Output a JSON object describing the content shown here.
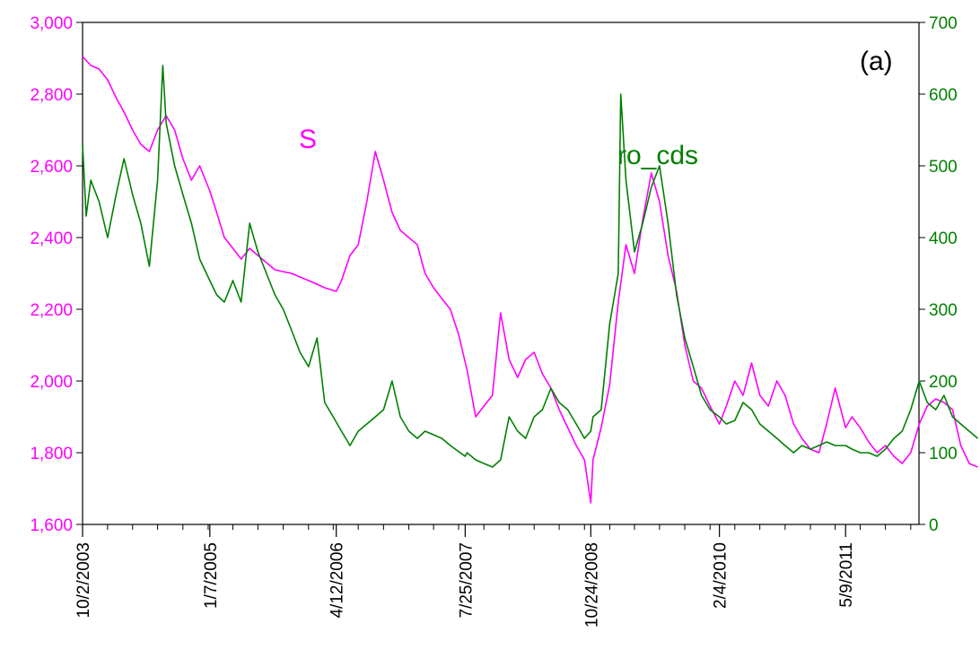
{
  "chart_data": {
    "type": "line",
    "panel_label": "(a)",
    "colors": {
      "S": "#ff00ff",
      "ro_cds": "#008000",
      "axis": "#000000"
    },
    "x": {
      "start": "10/2/2003",
      "end": "1/31/2012",
      "tick_labels": [
        "10/2/2003",
        "1/7/2005",
        "4/12/2006",
        "7/25/2007",
        "10/24/2008",
        "2/4/2010",
        "5/9/2011"
      ]
    },
    "y_left": {
      "ylim": [
        1600,
        3000
      ],
      "tick_labels": [
        "1,600",
        "1,800",
        "2,000",
        "2,200",
        "2,400",
        "2,600",
        "2,800",
        "3,000"
      ],
      "ticks": [
        1600,
        1800,
        2000,
        2200,
        2400,
        2600,
        2800,
        3000
      ]
    },
    "y_right": {
      "ylim": [
        0,
        700
      ],
      "tick_labels": [
        "0",
        "100",
        "200",
        "300",
        "400",
        "500",
        "600",
        "700"
      ],
      "ticks": [
        0,
        100,
        200,
        300,
        400,
        500,
        600,
        700
      ]
    },
    "grid": false,
    "series": [
      {
        "name": "S",
        "axis": "left",
        "points": [
          [
            "10/2/2003",
            2905
          ],
          [
            "11/1/2003",
            2880
          ],
          [
            "12/1/2003",
            2870
          ],
          [
            "1/1/2004",
            2840
          ],
          [
            "2/1/2004",
            2790
          ],
          [
            "3/1/2004",
            2750
          ],
          [
            "4/1/2004",
            2700
          ],
          [
            "5/1/2004",
            2660
          ],
          [
            "6/1/2004",
            2640
          ],
          [
            "7/1/2004",
            2700
          ],
          [
            "8/1/2004",
            2740
          ],
          [
            "9/1/2004",
            2700
          ],
          [
            "10/1/2004",
            2620
          ],
          [
            "11/1/2004",
            2560
          ],
          [
            "12/1/2004",
            2600
          ],
          [
            "1/7/2005",
            2530
          ],
          [
            "2/1/2005",
            2470
          ],
          [
            "3/1/2005",
            2400
          ],
          [
            "4/1/2005",
            2370
          ],
          [
            "5/1/2005",
            2340
          ],
          [
            "6/1/2005",
            2370
          ],
          [
            "7/1/2005",
            2350
          ],
          [
            "8/1/2005",
            2330
          ],
          [
            "9/1/2005",
            2310
          ],
          [
            "10/1/2005",
            2305
          ],
          [
            "11/1/2005",
            2300
          ],
          [
            "12/1/2005",
            2290
          ],
          [
            "1/1/2006",
            2280
          ],
          [
            "2/1/2006",
            2270
          ],
          [
            "3/1/2006",
            2260
          ],
          [
            "4/12/2006",
            2250
          ],
          [
            "5/1/2006",
            2280
          ],
          [
            "6/1/2006",
            2350
          ],
          [
            "7/1/2006",
            2380
          ],
          [
            "8/1/2006",
            2500
          ],
          [
            "9/1/2006",
            2640
          ],
          [
            "10/1/2006",
            2560
          ],
          [
            "11/1/2006",
            2470
          ],
          [
            "12/1/2006",
            2420
          ],
          [
            "1/1/2007",
            2400
          ],
          [
            "2/1/2007",
            2380
          ],
          [
            "3/1/2007",
            2300
          ],
          [
            "4/1/2007",
            2260
          ],
          [
            "5/1/2007",
            2230
          ],
          [
            "6/1/2007",
            2200
          ],
          [
            "7/1/2007",
            2130
          ],
          [
            "8/1/2007",
            2030
          ],
          [
            "9/1/2007",
            1900
          ],
          [
            "10/1/2007",
            1930
          ],
          [
            "11/1/2007",
            1960
          ],
          [
            "12/1/2007",
            2190
          ],
          [
            "1/1/2008",
            2060
          ],
          [
            "2/1/2008",
            2010
          ],
          [
            "3/1/2008",
            2060
          ],
          [
            "4/1/2008",
            2080
          ],
          [
            "5/1/2008",
            2020
          ],
          [
            "6/1/2008",
            1980
          ],
          [
            "7/1/2008",
            1920
          ],
          [
            "8/1/2008",
            1870
          ],
          [
            "9/1/2008",
            1820
          ],
          [
            "10/1/2008",
            1780
          ],
          [
            "10/24/2008",
            1660
          ],
          [
            "11/1/2008",
            1780
          ],
          [
            "12/1/2008",
            1870
          ],
          [
            "1/1/2009",
            1990
          ],
          [
            "2/1/2009",
            2220
          ],
          [
            "3/1/2009",
            2380
          ],
          [
            "4/1/2009",
            2300
          ],
          [
            "5/1/2009",
            2450
          ],
          [
            "6/1/2009",
            2580
          ],
          [
            "7/1/2009",
            2500
          ],
          [
            "8/1/2009",
            2350
          ],
          [
            "9/1/2009",
            2250
          ],
          [
            "10/1/2009",
            2100
          ],
          [
            "11/1/2009",
            2000
          ],
          [
            "12/1/2009",
            1980
          ],
          [
            "1/1/2010",
            1930
          ],
          [
            "2/4/2010",
            1880
          ],
          [
            "3/1/2010",
            1930
          ],
          [
            "4/1/2010",
            2000
          ],
          [
            "5/1/2010",
            1960
          ],
          [
            "6/1/2010",
            2050
          ],
          [
            "7/1/2010",
            1960
          ],
          [
            "8/1/2010",
            1930
          ],
          [
            "9/1/2010",
            2000
          ],
          [
            "10/1/2010",
            1960
          ],
          [
            "11/1/2010",
            1880
          ],
          [
            "12/1/2010",
            1840
          ],
          [
            "1/1/2011",
            1810
          ],
          [
            "2/1/2011",
            1800
          ],
          [
            "3/1/2011",
            1880
          ],
          [
            "4/1/2011",
            1980
          ],
          [
            "5/9/2011",
            1870
          ],
          [
            "6/1/2011",
            1900
          ],
          [
            "7/1/2011",
            1870
          ],
          [
            "8/1/2011",
            1830
          ],
          [
            "9/1/2011",
            1800
          ],
          [
            "10/1/2011",
            1820
          ],
          [
            "11/1/2011",
            1790
          ],
          [
            "12/1/2011",
            1770
          ],
          [
            "1/1/2012",
            1800
          ],
          [
            "2/1/2012",
            1880
          ],
          [
            "3/1/2012",
            1930
          ],
          [
            "4/1/2012",
            1950
          ],
          [
            "5/1/2012",
            1940
          ],
          [
            "6/1/2012",
            1920
          ],
          [
            "7/1/2012",
            1820
          ],
          [
            "8/1/2012",
            1770
          ],
          [
            "9/1/2012",
            1760
          ]
        ]
      },
      {
        "name": "ro_cds",
        "axis": "right",
        "points": [
          [
            "10/2/2003",
            530
          ],
          [
            "10/15/2003",
            430
          ],
          [
            "11/1/2003",
            480
          ],
          [
            "12/1/2003",
            450
          ],
          [
            "1/1/2004",
            400
          ],
          [
            "2/1/2004",
            460
          ],
          [
            "3/1/2004",
            510
          ],
          [
            "4/1/2004",
            460
          ],
          [
            "5/1/2004",
            420
          ],
          [
            "6/1/2004",
            360
          ],
          [
            "7/1/2004",
            480
          ],
          [
            "7/20/2004",
            640
          ],
          [
            "8/1/2004",
            560
          ],
          [
            "9/1/2004",
            500
          ],
          [
            "10/1/2004",
            460
          ],
          [
            "11/1/2004",
            420
          ],
          [
            "12/1/2004",
            370
          ],
          [
            "1/7/2005",
            340
          ],
          [
            "2/1/2005",
            320
          ],
          [
            "3/1/2005",
            310
          ],
          [
            "4/1/2005",
            340
          ],
          [
            "5/1/2005",
            310
          ],
          [
            "6/1/2005",
            420
          ],
          [
            "7/1/2005",
            380
          ],
          [
            "8/1/2005",
            350
          ],
          [
            "9/1/2005",
            320
          ],
          [
            "10/1/2005",
            300
          ],
          [
            "11/1/2005",
            270
          ],
          [
            "12/1/2005",
            240
          ],
          [
            "1/1/2006",
            220
          ],
          [
            "2/1/2006",
            260
          ],
          [
            "3/1/2006",
            170
          ],
          [
            "4/1/2006",
            150
          ],
          [
            "5/1/2006",
            130
          ],
          [
            "6/1/2006",
            110
          ],
          [
            "7/1/2006",
            130
          ],
          [
            "8/1/2006",
            140
          ],
          [
            "9/1/2006",
            150
          ],
          [
            "10/1/2006",
            160
          ],
          [
            "11/1/2006",
            200
          ],
          [
            "12/1/2006",
            150
          ],
          [
            "1/1/2007",
            130
          ],
          [
            "2/1/2007",
            120
          ],
          [
            "3/1/2007",
            130
          ],
          [
            "4/1/2007",
            125
          ],
          [
            "5/1/2007",
            120
          ],
          [
            "6/1/2007",
            110
          ],
          [
            "7/25/2007",
            95
          ],
          [
            "8/1/2007",
            100
          ],
          [
            "9/1/2007",
            90
          ],
          [
            "10/1/2007",
            85
          ],
          [
            "11/1/2007",
            80
          ],
          [
            "12/1/2007",
            90
          ],
          [
            "1/1/2008",
            150
          ],
          [
            "2/1/2008",
            130
          ],
          [
            "3/1/2008",
            120
          ],
          [
            "4/1/2008",
            150
          ],
          [
            "5/1/2008",
            160
          ],
          [
            "6/1/2008",
            190
          ],
          [
            "7/1/2008",
            170
          ],
          [
            "8/1/2008",
            160
          ],
          [
            "9/1/2008",
            140
          ],
          [
            "10/1/2008",
            120
          ],
          [
            "10/24/2008",
            130
          ],
          [
            "11/1/2008",
            150
          ],
          [
            "12/1/2008",
            160
          ],
          [
            "1/1/2009",
            280
          ],
          [
            "2/1/2009",
            350
          ],
          [
            "2/10/2009",
            600
          ],
          [
            "3/1/2009",
            480
          ],
          [
            "4/1/2009",
            380
          ],
          [
            "5/1/2009",
            420
          ],
          [
            "6/1/2009",
            470
          ],
          [
            "7/1/2009",
            500
          ],
          [
            "8/1/2009",
            420
          ],
          [
            "9/1/2009",
            320
          ],
          [
            "10/1/2009",
            260
          ],
          [
            "11/1/2009",
            220
          ],
          [
            "12/1/2009",
            180
          ],
          [
            "1/1/2010",
            160
          ],
          [
            "2/4/2010",
            150
          ],
          [
            "3/1/2010",
            140
          ],
          [
            "4/1/2010",
            145
          ],
          [
            "5/1/2010",
            170
          ],
          [
            "6/1/2010",
            160
          ],
          [
            "7/1/2010",
            140
          ],
          [
            "8/1/2010",
            130
          ],
          [
            "9/1/2010",
            120
          ],
          [
            "10/1/2010",
            110
          ],
          [
            "11/1/2010",
            100
          ],
          [
            "12/1/2010",
            110
          ],
          [
            "1/1/2011",
            105
          ],
          [
            "2/1/2011",
            110
          ],
          [
            "3/1/2011",
            115
          ],
          [
            "4/1/2011",
            110
          ],
          [
            "5/9/2011",
            110
          ],
          [
            "6/1/2011",
            105
          ],
          [
            "7/1/2011",
            100
          ],
          [
            "8/1/2011",
            100
          ],
          [
            "9/1/2011",
            95
          ],
          [
            "10/1/2011",
            105
          ],
          [
            "11/1/2011",
            120
          ],
          [
            "12/1/2011",
            130
          ],
          [
            "1/1/2012",
            160
          ],
          [
            "2/1/2012",
            200
          ],
          [
            "3/1/2012",
            170
          ],
          [
            "4/1/2012",
            160
          ],
          [
            "5/1/2012",
            180
          ],
          [
            "6/1/2012",
            150
          ],
          [
            "7/1/2012",
            140
          ],
          [
            "8/1/2012",
            130
          ],
          [
            "9/1/2012",
            120
          ]
        ]
      }
    ]
  }
}
